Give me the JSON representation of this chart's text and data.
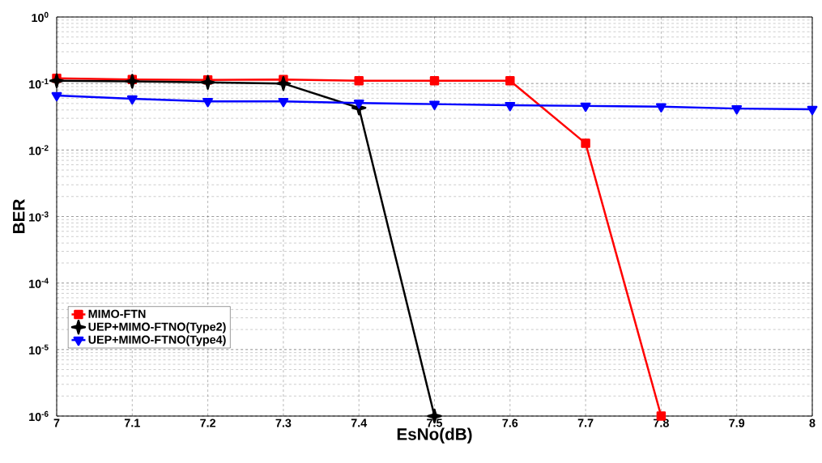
{
  "chart_data": {
    "type": "line",
    "xlabel": "EsNo(dB)",
    "ylabel": "BER",
    "log": "y",
    "x": [
      7,
      7.1,
      7.2,
      7.3,
      7.4,
      7.5,
      7.6,
      7.7,
      7.8,
      7.9,
      8
    ],
    "series": [
      {
        "name": "MIMO-FTN",
        "color": "#ff0000",
        "marker": "square",
        "values": [
          0.12,
          0.115,
          0.113,
          0.115,
          0.11,
          0.11,
          0.11,
          0.0126,
          1e-06,
          null,
          null
        ]
      },
      {
        "name": "UEP+MIMO-FTNO(Type2)",
        "color": "#000000",
        "marker": "star",
        "values": [
          0.11,
          0.108,
          0.104,
          0.1,
          0.043,
          1e-06,
          null,
          null,
          null,
          null,
          null
        ]
      },
      {
        "name": "UEP+MIMO-FTNO(Type4)",
        "color": "#0000ff",
        "marker": "triangle",
        "values": [
          0.066,
          0.059,
          0.054,
          0.054,
          0.051,
          0.049,
          0.047,
          0.046,
          0.045,
          0.042,
          0.041
        ]
      }
    ],
    "xlim": [
      7,
      8
    ],
    "ylim": [
      1e-06,
      1
    ],
    "xticks": [
      7,
      7.1,
      7.2,
      7.3,
      7.4,
      7.5,
      7.6,
      7.7,
      7.8,
      7.9,
      8
    ],
    "yticks": [
      {
        "value": 1e-06,
        "label": "10$^{-6}$"
      },
      {
        "value": 1e-05,
        "label": "10$^{-5}$"
      },
      {
        "value": 0.0001,
        "label": "10$^{-4}$"
      },
      {
        "value": 0.001,
        "label": "10$^{-3}$"
      },
      {
        "value": 0.01,
        "label": "10$^{-2}$"
      },
      {
        "value": 0.1,
        "label": "10$^{-1}$"
      },
      {
        "value": 1,
        "label": "10$^{0}$"
      }
    ],
    "grid": true,
    "legend": "bottom left",
    "line_style": "solid"
  }
}
